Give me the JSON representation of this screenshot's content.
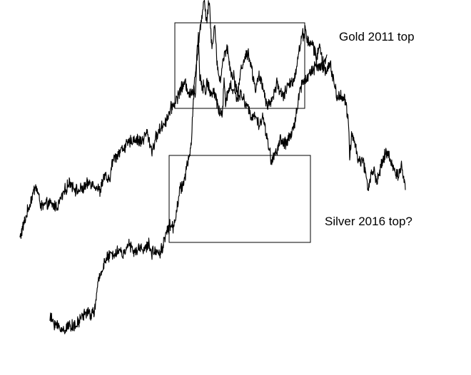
{
  "chart_data": {
    "type": "line",
    "title": "",
    "xlabel": "",
    "ylabel": "",
    "grid": false,
    "legend": "none",
    "colors": {
      "line": "#000000",
      "box": "#000000",
      "background": "#ffffff"
    },
    "annotations": [
      {
        "text": "Gold 2011 top"
      },
      {
        "text": "Silver 2016 top?"
      }
    ],
    "series": [
      {
        "x": [
          0,
          10,
          18,
          22,
          30,
          40,
          52,
          60,
          70,
          80,
          90,
          98,
          105,
          112,
          118,
          125,
          130,
          140,
          150,
          160,
          170,
          178,
          185,
          190,
          196,
          205,
          212,
          218,
          225,
          232,
          238,
          242,
          246,
          250,
          253,
          256,
          258,
          260,
          262,
          264,
          266,
          268,
          270,
          272,
          274,
          276,
          280,
          285,
          290,
          295,
          300,
          305,
          310,
          315,
          320,
          325,
          330,
          335,
          340,
          345,
          350,
          355,
          360,
          365,
          370,
          375,
          380,
          385,
          390,
          395,
          400,
          405,
          410,
          415,
          420,
          425,
          430,
          435,
          440,
          445,
          450,
          455,
          460,
          462,
          465,
          470,
          475,
          480,
          485,
          488,
          492,
          496,
          500,
          505,
          510,
          515,
          520,
          525,
          530,
          535,
          540
        ],
        "y": [
          40,
          48,
          54,
          57,
          50,
          51,
          50,
          54,
          58,
          55,
          56,
          58,
          57,
          55,
          60,
          58,
          65,
          68,
          70,
          72,
          71,
          74,
          68,
          72,
          75,
          78,
          82,
          84,
          88,
          90,
          86,
          87,
          94,
          102,
          108,
          114,
          118,
          113,
          110,
          116,
          115,
          104,
          102,
          108,
          106,
          97,
          90,
          98,
          102,
          94,
          92,
          86,
          95,
          98,
          100,
          94,
          88,
          92,
          89,
          84,
          83,
          86,
          90,
          87,
          86,
          89,
          90,
          92,
          99,
          105,
          107,
          102,
          103,
          98,
          102,
          95,
          94,
          96,
          90,
          85,
          86,
          85,
          78,
          66,
          74,
          70,
          64,
          66,
          60,
          56,
          60,
          62,
          58,
          62,
          66,
          68,
          64,
          62,
          60,
          63,
          56
        ]
      },
      {
        "x": [
          42,
          50,
          60,
          70,
          78,
          85,
          92,
          100,
          105,
          110,
          118,
          125,
          132,
          140,
          145,
          150,
          155,
          160,
          165,
          170,
          175,
          180,
          185,
          190,
          195,
          200,
          205,
          210,
          215,
          220,
          225,
          230,
          235,
          240,
          242,
          244,
          246,
          248,
          250,
          252,
          254,
          256,
          258,
          260,
          262,
          265,
          268,
          272,
          276,
          280,
          284,
          286,
          288,
          290,
          295,
          300,
          305,
          310,
          315,
          320,
          325,
          330,
          335,
          340,
          345,
          350,
          352,
          355,
          360,
          365,
          370,
          375,
          380,
          385,
          390,
          395,
          400,
          405,
          410,
          415,
          420,
          425,
          430
        ],
        "y": [
          14,
          12,
          10,
          12,
          11,
          14,
          16,
          15,
          17,
          26,
          32,
          34,
          35,
          36,
          34,
          38,
          37,
          35,
          36,
          37,
          36,
          38,
          35,
          36,
          35,
          37,
          42,
          44,
          43,
          50,
          56,
          58,
          64,
          70,
          80,
          88,
          86,
          100,
          106,
          92,
          90,
          88,
          90,
          86,
          91,
          88,
          86,
          87,
          84,
          80,
          81,
          92,
          82,
          86,
          89,
          87,
          85,
          86,
          84,
          82,
          78,
          80,
          76,
          79,
          74,
          68,
          64,
          66,
          68,
          72,
          70,
          71,
          73,
          77,
          85,
          90,
          91,
          93,
          94,
          96,
          95,
          97,
          98
        ]
      }
    ]
  }
}
